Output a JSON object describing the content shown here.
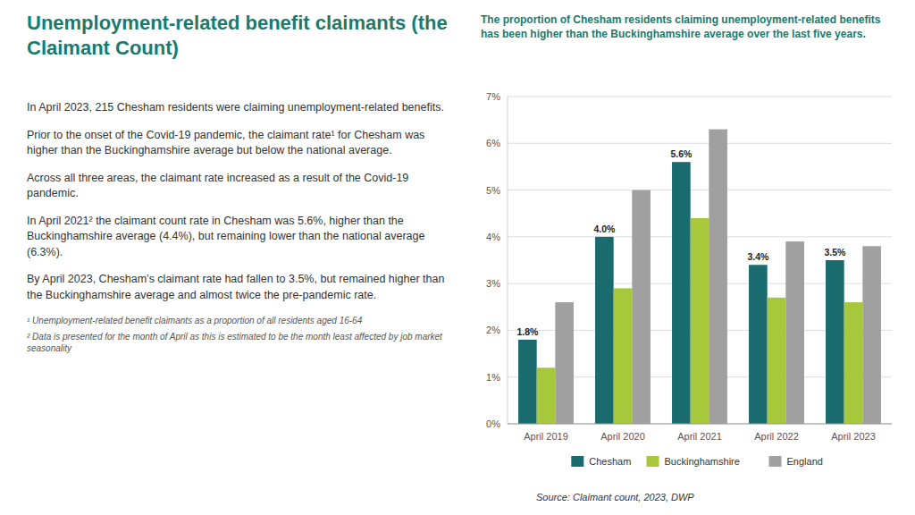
{
  "chart_data": {
    "type": "bar",
    "title": "Unemployment-related benefit claimants (the Claimant Count)",
    "subtitle": "The proportion of Chesham residents claiming unemployment-related benefits has been higher than the Buckinghamshire average over the last five years.",
    "categories": [
      "April 2019",
      "April 2020",
      "April 2021",
      "April 2022",
      "April 2023"
    ],
    "series": [
      {
        "name": "Chesham",
        "color": "#1a6b6e",
        "values": [
          1.8,
          4.0,
          5.6,
          3.4,
          3.5
        ],
        "value_labels": [
          "1.8%",
          "4.0%",
          "5.6%",
          "3.4%",
          "3.5%"
        ]
      },
      {
        "name": "Buckinghamshire",
        "color": "#a8c83c",
        "values": [
          1.2,
          2.9,
          4.4,
          2.7,
          2.6
        ]
      },
      {
        "name": "England",
        "color": "#a0a0a0",
        "values": [
          2.6,
          5.0,
          6.3,
          3.9,
          3.8
        ]
      }
    ],
    "ylim": [
      0,
      7
    ],
    "yticks": [
      {
        "value": 0,
        "label": "0%"
      },
      {
        "value": 1,
        "label": "1%"
      },
      {
        "value": 2,
        "label": "2%"
      },
      {
        "value": 3,
        "label": "3%"
      },
      {
        "value": 4,
        "label": "4%"
      },
      {
        "value": 5,
        "label": "5%"
      },
      {
        "value": 6,
        "label": "6%"
      },
      {
        "value": 7,
        "label": "7%"
      }
    ],
    "grid": true,
    "legend": "bottom",
    "data_labels": true,
    "annotations": [
      "In April 2023, 215 Chesham residents were claiming unemployment-related benefits.",
      "Prior to the onset of the Covid-19 pandemic, the claimant rate¹ for Chesham was higher than the Buckinghamshire average but below the national average.",
      "Across all three areas, the claimant rate increased as a result of the Covid-19 pandemic.",
      "In April 2021² the claimant count rate in Chesham was 5.6%, higher than the Buckinghamshire average (4.4%), but remaining lower than the national average (6.3%).",
      "By April 2023, Chesham’s claimant rate had fallen to 3.5%, but remained higher than the Buckinghamshire average and almost twice the pre-pandemic rate.",
      "¹ Unemployment-related benefit claimants as a proportion of all residents aged 16-64",
      "² Data is presented for the month of April as this is estimated to be the month least affected by job market seasonality"
    ],
    "source": "Source: Claimant count, 2023, DWP"
  }
}
